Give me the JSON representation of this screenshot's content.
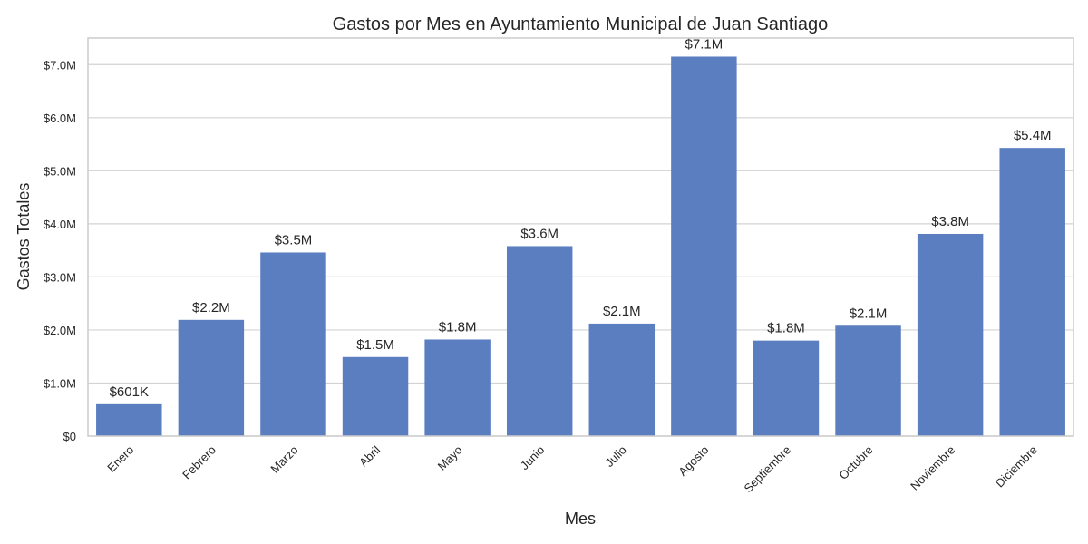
{
  "chart_data": {
    "type": "bar",
    "title": "Gastos por Mes en Ayuntamiento Municipal de Juan Santiago",
    "xlabel": "Mes",
    "ylabel": "Gastos Totales",
    "categories": [
      "Enero",
      "Febrero",
      "Marzo",
      "Abril",
      "Mayo",
      "Junio",
      "Julio",
      "Agosto",
      "Septiembre",
      "Octubre",
      "Noviembre",
      "Diciembre"
    ],
    "values": [
      601000,
      2190000,
      3460000,
      1490000,
      1820000,
      3580000,
      2120000,
      7150000,
      1800000,
      2080000,
      3810000,
      5430000
    ],
    "value_labels": [
      "$601K",
      "$2.2M",
      "$3.5M",
      "$1.5M",
      "$1.8M",
      "$3.6M",
      "$2.1M",
      "$7.1M",
      "$1.8M",
      "$2.1M",
      "$3.8M",
      "$5.4M"
    ],
    "yticks": [
      0,
      1000000,
      2000000,
      3000000,
      4000000,
      5000000,
      6000000,
      7000000
    ],
    "ytick_labels": [
      "$0",
      "$1.0M",
      "$2.0M",
      "$3.0M",
      "$4.0M",
      "$5.0M",
      "$6.0M",
      "$7.0M"
    ],
    "ylim": [
      0,
      7500000
    ],
    "grid": true,
    "colors": {
      "bar": "#5b7ec1",
      "grid": "#d3d3d3",
      "frame": "#cccccc"
    }
  }
}
